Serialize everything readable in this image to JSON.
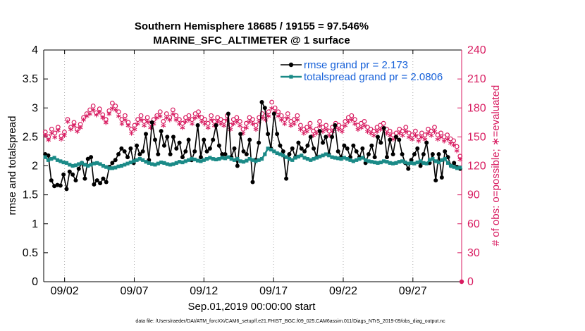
{
  "chart_data": {
    "type": "line",
    "title_line1": "Southern Hemisphere 18685 / 19155 = 97.546%",
    "title_line2": "MARINE_SFC_ALTIMETER @ 1 surface",
    "xlabel": "Sep.01,2019 00:00:00 start",
    "ylabel_left": "rmse and totalspread",
    "ylabel_right": "# of obs: o=possible; ∗=evaluated",
    "footer": "data file: /Users/raeder/DAI/ATM_forcXX/CAM6_setup/f.e21.FHIST_BGC.f09_025.CAM6assim.011/Diags_NTrS_2019-09/obs_diag_output.nc",
    "x_range": [
      0.5,
      30.5
    ],
    "x_ticks": [
      {
        "value": 2,
        "label": "09/02"
      },
      {
        "value": 7,
        "label": "09/07"
      },
      {
        "value": 12,
        "label": "09/12"
      },
      {
        "value": 17,
        "label": "09/17"
      },
      {
        "value": 22,
        "label": "09/22"
      },
      {
        "value": 27,
        "label": "09/27"
      }
    ],
    "ylim_left": [
      0,
      4
    ],
    "y_ticks_left": [
      "0",
      "0.5",
      "1",
      "1.5",
      "2",
      "2.5",
      "3",
      "3.5",
      "4"
    ],
    "ylim_right": [
      0,
      240
    ],
    "y_ticks_right": [
      "0",
      "30",
      "60",
      "90",
      "120",
      "150",
      "180",
      "210",
      "240"
    ],
    "colors": {
      "rmse": "#000000",
      "spread": "#1a8a87",
      "obs": "#d81b60",
      "legend_text": "#1560d9"
    },
    "series": [
      {
        "name": "rmse grand pr = 2.173",
        "key": "rmse",
        "axis": "left",
        "values": [
          2.2,
          2.18,
          1.75,
          1.65,
          1.67,
          1.66,
          1.85,
          1.6,
          1.9,
          1.85,
          1.75,
          1.95,
          2.05,
          1.78,
          2.12,
          2.15,
          1.68,
          1.75,
          1.7,
          1.78,
          1.72,
          1.98,
          2.05,
          2.1,
          2.2,
          2.3,
          2.25,
          2.15,
          2.3,
          2.05,
          2.35,
          2.2,
          2.25,
          2.55,
          2.1,
          2.75,
          2.45,
          2.2,
          2.6,
          2.35,
          2.5,
          2.2,
          2.5,
          2.3,
          2.4,
          2.15,
          2.25,
          2.45,
          2.1,
          2.25,
          2.7,
          2.15,
          2.45,
          2.25,
          2.3,
          2.45,
          2.7,
          2.35,
          2.2,
          2.2,
          2.9,
          2.15,
          2.3,
          2.0,
          2.55,
          2.25,
          2.2,
          2.45,
          1.72,
          2.1,
          2.4,
          3.1,
          3.0,
          2.55,
          2.3,
          2.9,
          2.55,
          2.35,
          2.25,
          1.78,
          2.2,
          2.3,
          2.15,
          2.4,
          2.3,
          2.25,
          2.35,
          2.5,
          2.3,
          2.15,
          2.6,
          2.4,
          2.5,
          2.2,
          2.5,
          2.7,
          2.25,
          2.15,
          2.35,
          2.3,
          2.15,
          2.35,
          2.25,
          2.15,
          2.3,
          2.05,
          2.2,
          2.35,
          2.15,
          2.5,
          2.4,
          2.65,
          2.15,
          2.45,
          2.2,
          2.5,
          2.45,
          2.2,
          2.05,
          1.95,
          2.1,
          2.2,
          2.3,
          2.0,
          2.2,
          2.4,
          2.05,
          2.2,
          1.75,
          2.2,
          1.8,
          2.25,
          2.15,
          2.0,
          2.05,
          1.98,
          1.95
        ]
      },
      {
        "name": "totalspread grand pr = 2.0806",
        "key": "spread",
        "axis": "left",
        "values": [
          2.15,
          2.1,
          2.12,
          2.14,
          2.1,
          2.08,
          2.06,
          2.05,
          2.02,
          2.0,
          2.01,
          2.03,
          2.05,
          2.02,
          2.0,
          2.02,
          2.04,
          2.05,
          2.03,
          2.0,
          1.98,
          1.96,
          1.96,
          1.97,
          1.99,
          2.0,
          2.02,
          2.04,
          2.06,
          2.08,
          2.1,
          2.12,
          2.1,
          2.07,
          2.05,
          2.03,
          2.02,
          2.04,
          2.06,
          2.05,
          2.03,
          2.02,
          2.03,
          2.05,
          2.07,
          2.06,
          2.08,
          2.1,
          2.12,
          2.11,
          2.09,
          2.08,
          2.1,
          2.12,
          2.14,
          2.12,
          2.11,
          2.12,
          2.14,
          2.13,
          2.15,
          2.12,
          2.1,
          2.12,
          2.08,
          2.07,
          2.09,
          2.12,
          2.1,
          2.08,
          2.1,
          2.12,
          2.2,
          2.3,
          2.28,
          2.25,
          2.22,
          2.2,
          2.18,
          2.15,
          2.12,
          2.1,
          2.14,
          2.16,
          2.18,
          2.14,
          2.12,
          2.1,
          2.12,
          2.14,
          2.16,
          2.18,
          2.2,
          2.18,
          2.15,
          2.14,
          2.13,
          2.12,
          2.14,
          2.12,
          2.1,
          2.08,
          2.1,
          2.12,
          2.14,
          2.1,
          2.08,
          2.07,
          2.06,
          2.05,
          2.06,
          2.08,
          2.07,
          2.05,
          2.04,
          2.05,
          2.07,
          2.08,
          2.06,
          2.04,
          2.05,
          2.04,
          2.06,
          2.08,
          2.05,
          2.04,
          2.1,
          2.12,
          2.08,
          2.06,
          2.1,
          2.12,
          2.05,
          2.0,
          1.98,
          1.96,
          1.97
        ]
      },
      {
        "name": "possible",
        "key": "obs_possible",
        "axis": "right",
        "values": [
          155,
          150,
          158,
          154,
          160,
          151,
          155,
          168,
          160,
          165,
          158,
          163,
          170,
          174,
          178,
          182,
          175,
          179,
          173,
          168,
          177,
          185,
          182,
          176,
          168,
          172,
          165,
          158,
          162,
          168,
          172,
          166,
          170,
          164,
          168,
          172,
          176,
          166,
          174,
          170,
          178,
          172,
          168,
          164,
          170,
          172,
          168,
          174,
          176,
          170,
          168,
          164,
          172,
          166,
          170,
          168,
          166,
          172,
          162,
          168,
          170,
          166,
          158,
          164,
          170,
          168,
          162,
          170,
          174,
          172,
          176,
          186,
          180,
          176,
          172,
          168,
          174,
          166,
          168,
          172,
          162,
          158,
          160,
          164,
          156,
          158,
          166,
          160,
          162,
          156,
          160,
          164,
          162,
          160,
          166,
          170,
          172,
          168,
          162,
          164,
          166,
          160,
          158,
          156,
          160,
          162,
          164,
          158,
          156,
          152,
          154,
          158,
          156,
          160,
          154,
          152,
          156,
          150,
          154,
          152,
          158,
          156,
          160,
          152,
          154,
          150,
          152,
          148,
          146,
          140,
          130
        ]
      },
      {
        "name": "evaluated",
        "key": "obs_evaluated",
        "axis": "right",
        "values": [
          150,
          145,
          152,
          148,
          155,
          146,
          150,
          164,
          156,
          160,
          154,
          158,
          166,
          170,
          172,
          176,
          171,
          174,
          168,
          163,
          172,
          178,
          176,
          170,
          162,
          166,
          160,
          152,
          156,
          162,
          166,
          160,
          164,
          158,
          162,
          168,
          170,
          160,
          168,
          166,
          172,
          166,
          162,
          158,
          164,
          166,
          162,
          168,
          170,
          164,
          162,
          158,
          166,
          160,
          164,
          162,
          160,
          166,
          156,
          162,
          164,
          160,
          152,
          158,
          164,
          162,
          156,
          164,
          168,
          166,
          170,
          178,
          174,
          170,
          166,
          162,
          168,
          160,
          162,
          166,
          156,
          152,
          154,
          158,
          150,
          152,
          160,
          154,
          156,
          150,
          154,
          158,
          156,
          154,
          160,
          164,
          166,
          162,
          156,
          158,
          160,
          154,
          152,
          150,
          154,
          156,
          158,
          152,
          150,
          146,
          148,
          152,
          150,
          154,
          148,
          146,
          150,
          144,
          148,
          146,
          152,
          150,
          154,
          146,
          148,
          144,
          146,
          142,
          140,
          134,
          125
        ]
      }
    ],
    "extra_point": {
      "x": 30.5,
      "value": 0
    }
  }
}
